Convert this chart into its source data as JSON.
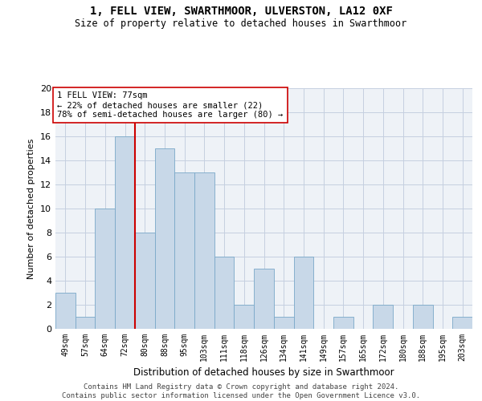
{
  "title": "1, FELL VIEW, SWARTHMOOR, ULVERSTON, LA12 0XF",
  "subtitle": "Size of property relative to detached houses in Swarthmoor",
  "xlabel": "Distribution of detached houses by size in Swarthmoor",
  "ylabel": "Number of detached properties",
  "bin_labels": [
    "49sqm",
    "57sqm",
    "64sqm",
    "72sqm",
    "80sqm",
    "88sqm",
    "95sqm",
    "103sqm",
    "111sqm",
    "118sqm",
    "126sqm",
    "134sqm",
    "141sqm",
    "149sqm",
    "157sqm",
    "165sqm",
    "172sqm",
    "180sqm",
    "188sqm",
    "195sqm",
    "203sqm"
  ],
  "bar_heights": [
    3,
    1,
    10,
    16,
    8,
    15,
    13,
    13,
    6,
    2,
    5,
    1,
    6,
    0,
    1,
    0,
    2,
    0,
    2,
    0,
    1
  ],
  "bar_color": "#c8d8e8",
  "bar_edgecolor": "#7aa8c8",
  "vline_x": 3.5,
  "vline_color": "#cc0000",
  "annotation_text": "1 FELL VIEW: 77sqm\n← 22% of detached houses are smaller (22)\n78% of semi-detached houses are larger (80) →",
  "annotation_box_color": "#ffffff",
  "annotation_box_edgecolor": "#cc0000",
  "ylim": [
    0,
    20
  ],
  "yticks": [
    0,
    2,
    4,
    6,
    8,
    10,
    12,
    14,
    16,
    18,
    20
  ],
  "footer": "Contains HM Land Registry data © Crown copyright and database right 2024.\nContains public sector information licensed under the Open Government Licence v3.0.",
  "background_color": "#eef2f7",
  "grid_color": "#c5cfe0"
}
